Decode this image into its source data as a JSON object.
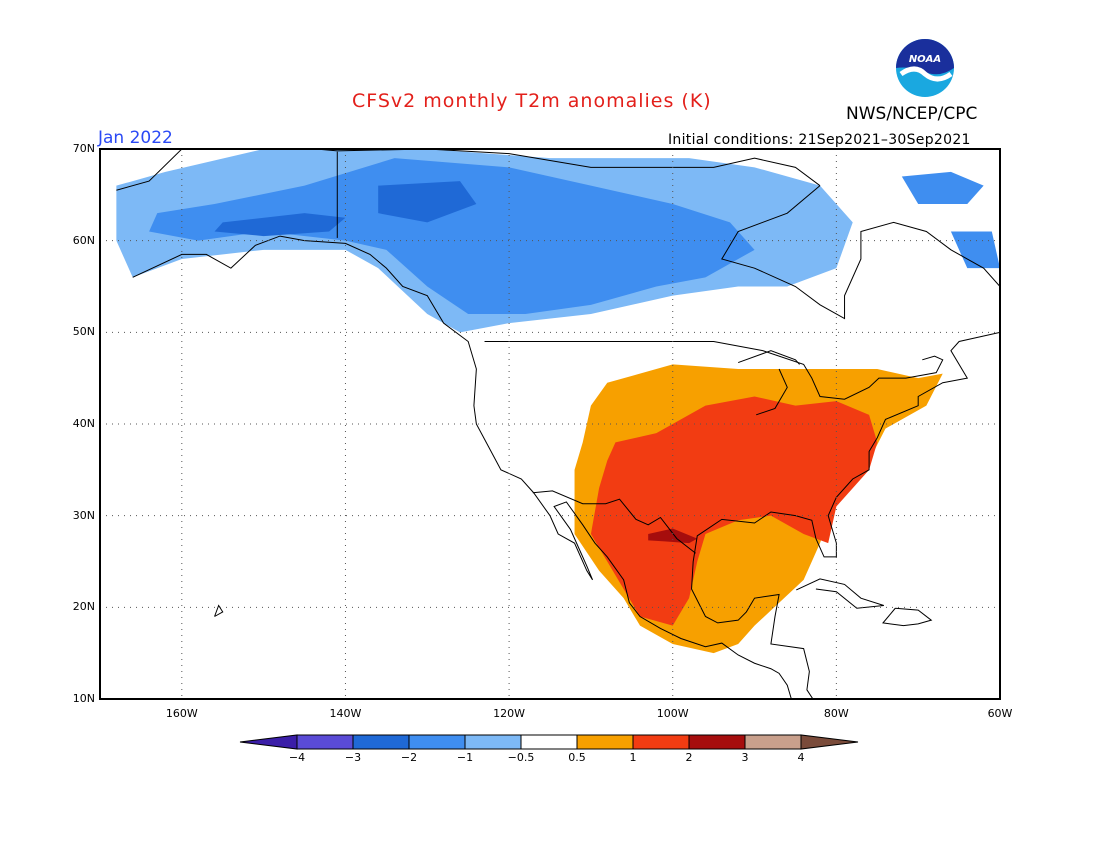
{
  "title": "CFSv2 monthly T2m anomalies (K)",
  "org": "NWS/NCEP/CPC",
  "logo_text": "NOAA",
  "month": "Jan 2022",
  "initial_conditions": "Initial conditions: 21Sep2021–30Sep2021",
  "colors": {
    "title": "#e3201b",
    "month": "#2a49f5",
    "lt_neg4": "#3b1ea8",
    "neg4_neg3": "#5a4bd6",
    "neg3_neg2": "#1f69d6",
    "neg2_neg1": "#3f8ef0",
    "neg1_neg05": "#7db9f6",
    "neutral": "#ffffff",
    "p05_1": "#f7a000",
    "p1_2": "#f23c12",
    "p2_3": "#a60d0d",
    "p3_4": "#c9a08c",
    "gt4": "#7a4b3a"
  },
  "lat_labels": [
    "70N",
    "60N",
    "50N",
    "40N",
    "30N",
    "20N",
    "10N"
  ],
  "lon_labels": [
    "160W",
    "140W",
    "120W",
    "100W",
    "80W",
    "60W"
  ],
  "colorbar": {
    "ticks": [
      "−4",
      "−3",
      "−2",
      "−1",
      "−0.5",
      "0.5",
      "1",
      "2",
      "3",
      "4"
    ]
  },
  "chart_data": {
    "type": "heatmap",
    "variable": "T2m anomaly",
    "units": "K",
    "valid": "Jan 2022",
    "lat_range": [
      10,
      70
    ],
    "lon_range": [
      -170,
      -60
    ],
    "contour_levels": [
      -4,
      -3,
      -2,
      -1,
      -0.5,
      0.5,
      1,
      2,
      3,
      4
    ],
    "regions": [
      {
        "region": "Alaska / Yukon / NW Canada",
        "anomaly_range": [
          -2,
          -0.5
        ]
      },
      {
        "region": "Southern Yukon / northern British Columbia",
        "anomaly_range": [
          -3,
          -2
        ]
      },
      {
        "region": "Western US",
        "anomaly_range": [
          -0.5,
          0.5
        ]
      },
      {
        "region": "Central Plains / Great Lakes / Northeast US",
        "anomaly_range": [
          0.5,
          1
        ]
      },
      {
        "region": "South-central / Southeast US",
        "anomaly_range": [
          1,
          2
        ]
      },
      {
        "region": "Northern Mexico",
        "anomaly_range": [
          1,
          2
        ]
      },
      {
        "region": "Northeastern Mexico",
        "anomaly_range": [
          2,
          3
        ]
      }
    ]
  }
}
